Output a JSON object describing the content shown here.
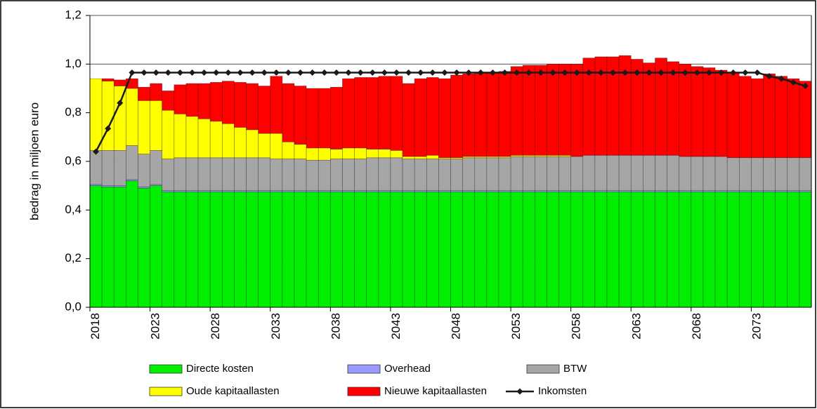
{
  "chart_data": {
    "type": "bar",
    "stacked": true,
    "y_label": "bedrag in miljoen euro",
    "categories": [
      "2018",
      null,
      null,
      null,
      null,
      "2023",
      null,
      null,
      null,
      null,
      "2028",
      null,
      null,
      null,
      null,
      "2033",
      null,
      null,
      null,
      null,
      "2038",
      null,
      null,
      null,
      null,
      "2043",
      null,
      null,
      null,
      null,
      "2048",
      null,
      null,
      null,
      null,
      "2053",
      null,
      null,
      null,
      null,
      "2058",
      null,
      null,
      null,
      null,
      "2063",
      null,
      null,
      null,
      null,
      "2068",
      null,
      null,
      null,
      null,
      "2073",
      null,
      null,
      null,
      null
    ],
    "ylim": [
      0,
      1.2
    ],
    "yticks": [
      {
        "value": 0,
        "label": "0,0"
      },
      {
        "value": 0.2,
        "label": "0,2"
      },
      {
        "value": 0.4,
        "label": "0,4"
      },
      {
        "value": 0.6,
        "label": "0,6"
      },
      {
        "value": 0.8,
        "label": "0,8"
      },
      {
        "value": 1.0,
        "label": "1,0"
      },
      {
        "value": 1.2,
        "label": "1,2"
      }
    ],
    "grid": true,
    "series": [
      {
        "name": "Directe kosten",
        "color": "#00ee00",
        "values": [
          0.5,
          0.495,
          0.495,
          0.52,
          0.49,
          0.5,
          0.475,
          0.475,
          0.475,
          0.475,
          0.475,
          0.475,
          0.475,
          0.475,
          0.475,
          0.475,
          0.475,
          0.475,
          0.475,
          0.475,
          0.475,
          0.475,
          0.475,
          0.475,
          0.475,
          0.475,
          0.475,
          0.475,
          0.475,
          0.475,
          0.475,
          0.475,
          0.475,
          0.475,
          0.475,
          0.475,
          0.475,
          0.475,
          0.475,
          0.475,
          0.475,
          0.475,
          0.475,
          0.475,
          0.475,
          0.475,
          0.475,
          0.475,
          0.475,
          0.475,
          0.475,
          0.475,
          0.475,
          0.475,
          0.475,
          0.475,
          0.475,
          0.475,
          0.475,
          0.475
        ]
      },
      {
        "name": "Overhead",
        "color": "#9999ff",
        "values": [
          0.005,
          0.005,
          0.005,
          0.005,
          0.005,
          0.005,
          0.005,
          0.005,
          0.005,
          0.005,
          0.005,
          0.005,
          0.005,
          0.005,
          0.005,
          0.005,
          0.005,
          0.005,
          0.005,
          0.005,
          0.005,
          0.005,
          0.005,
          0.005,
          0.005,
          0.005,
          0.005,
          0.005,
          0.005,
          0.005,
          0.005,
          0.005,
          0.005,
          0.005,
          0.005,
          0.005,
          0.005,
          0.005,
          0.005,
          0.005,
          0.005,
          0.005,
          0.005,
          0.005,
          0.005,
          0.005,
          0.005,
          0.005,
          0.005,
          0.005,
          0.005,
          0.005,
          0.005,
          0.005,
          0.005,
          0.005,
          0.005,
          0.005,
          0.005,
          0.005
        ]
      },
      {
        "name": "BTW",
        "color": "#a6a6a6",
        "values": [
          0.14,
          0.145,
          0.145,
          0.14,
          0.135,
          0.14,
          0.13,
          0.135,
          0.135,
          0.135,
          0.135,
          0.135,
          0.135,
          0.135,
          0.135,
          0.13,
          0.13,
          0.13,
          0.125,
          0.125,
          0.13,
          0.13,
          0.13,
          0.135,
          0.135,
          0.135,
          0.13,
          0.13,
          0.13,
          0.13,
          0.13,
          0.135,
          0.135,
          0.135,
          0.135,
          0.14,
          0.14,
          0.14,
          0.14,
          0.14,
          0.14,
          0.145,
          0.145,
          0.145,
          0.145,
          0.145,
          0.145,
          0.145,
          0.145,
          0.14,
          0.14,
          0.14,
          0.14,
          0.135,
          0.135,
          0.135,
          0.135,
          0.135,
          0.135,
          0.135
        ]
      },
      {
        "name": "Oude kapitaallasten",
        "color": "#ffff00",
        "values": [
          0.295,
          0.285,
          0.265,
          0.235,
          0.22,
          0.205,
          0.2,
          0.18,
          0.17,
          0.16,
          0.15,
          0.14,
          0.125,
          0.115,
          0.1,
          0.105,
          0.07,
          0.06,
          0.05,
          0.05,
          0.04,
          0.045,
          0.045,
          0.035,
          0.035,
          0.03,
          0.01,
          0.01,
          0.015,
          0.005,
          0.005,
          0.005,
          0.005,
          0.005,
          0.005,
          0.005,
          0.005,
          0.005,
          0.005,
          0.005,
          0,
          0,
          0,
          0,
          0,
          0,
          0,
          0,
          0,
          0,
          0,
          0,
          0,
          0,
          0,
          0,
          0,
          0,
          0,
          0
        ]
      },
      {
        "name": "Nieuwe kapitaallasten",
        "color": "#ff0000",
        "values": [
          0,
          0.01,
          0.025,
          0.04,
          0.055,
          0.07,
          0.08,
          0.12,
          0.135,
          0.145,
          0.16,
          0.175,
          0.185,
          0.19,
          0.195,
          0.235,
          0.24,
          0.24,
          0.245,
          0.245,
          0.255,
          0.285,
          0.29,
          0.295,
          0.3,
          0.305,
          0.3,
          0.32,
          0.32,
          0.325,
          0.34,
          0.34,
          0.345,
          0.345,
          0.35,
          0.365,
          0.37,
          0.37,
          0.375,
          0.375,
          0.38,
          0.4,
          0.405,
          0.405,
          0.41,
          0.395,
          0.38,
          0.4,
          0.385,
          0.38,
          0.37,
          0.365,
          0.355,
          0.35,
          0.335,
          0.325,
          0.345,
          0.335,
          0.325,
          0.315
        ]
      },
      {
        "name": "Inkomsten",
        "type": "line",
        "color": "#1a1a1a",
        "values": [
          0.64,
          0.735,
          0.84,
          0.965,
          0.965,
          0.965,
          0.965,
          0.965,
          0.965,
          0.965,
          0.965,
          0.965,
          0.965,
          0.965,
          0.965,
          0.965,
          0.965,
          0.965,
          0.965,
          0.965,
          0.965,
          0.965,
          0.965,
          0.965,
          0.965,
          0.965,
          0.965,
          0.965,
          0.965,
          0.965,
          0.965,
          0.965,
          0.965,
          0.965,
          0.965,
          0.965,
          0.965,
          0.965,
          0.965,
          0.965,
          0.965,
          0.965,
          0.965,
          0.965,
          0.965,
          0.965,
          0.965,
          0.965,
          0.965,
          0.965,
          0.965,
          0.965,
          0.965,
          0.965,
          0.965,
          0.965,
          0.95,
          0.94,
          0.925,
          0.91
        ]
      }
    ]
  }
}
